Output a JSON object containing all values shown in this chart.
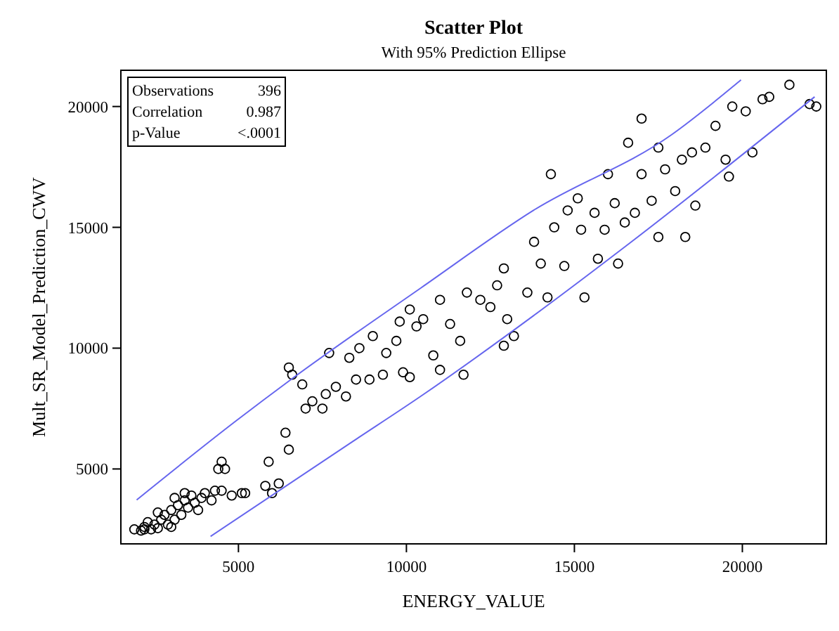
{
  "chart_data": {
    "type": "scatter",
    "title": "Scatter Plot",
    "subtitle": "With 95% Prediction Ellipse",
    "xlabel": "ENERGY_VALUE",
    "ylabel": "Mult_SR_Model_Prediction_CWV",
    "annotations": [
      "Observations 396",
      "Correlation 0.987",
      "p-Value <.0001"
    ],
    "xlim": [
      1500,
      22500
    ],
    "ylim": [
      1900,
      21500
    ],
    "xticks": [
      5000,
      10000,
      15000,
      20000
    ],
    "yticks": [
      5000,
      10000,
      15000,
      20000
    ],
    "grid": false,
    "marker": "circle",
    "series": [
      {
        "color": "#000000",
        "x": [
          1900,
          2100,
          2200,
          2400,
          2500,
          2600,
          2700,
          2800,
          2900,
          3000,
          3100,
          3200,
          3300,
          3400,
          3500,
          3600,
          3700,
          3800,
          3900,
          4000,
          4200,
          4300,
          4400,
          4500,
          4600,
          4500,
          4800,
          5100,
          5200,
          2300,
          2600,
          3100,
          3400,
          2200,
          3000,
          5900,
          5800,
          6000,
          6200,
          6500,
          6400,
          6600,
          6500,
          6900,
          7000,
          7200,
          7600,
          7500,
          7900,
          8200,
          8500,
          8300,
          8900,
          9300,
          8600,
          9000,
          9400,
          9700,
          9900,
          10100,
          10300,
          10100,
          10500,
          10800,
          11000,
          11300,
          11000,
          11600,
          11800,
          11700,
          12200,
          12500,
          12700,
          13000,
          13200,
          12900,
          13600,
          14000,
          13800,
          14200,
          14400,
          14700,
          14800,
          15200,
          15300,
          15600,
          15700,
          15900,
          16200,
          16000,
          16300,
          16500,
          16800,
          17000,
          17000,
          17300,
          17500,
          17700,
          17500,
          18000,
          18200,
          18300,
          18500,
          18600,
          18900,
          19200,
          19500,
          19700,
          19600,
          20100,
          20300,
          20600,
          20800,
          21400,
          22000,
          22200,
          16600,
          15100,
          14300,
          12900,
          9800,
          7700
        ],
        "values": [
          2500,
          2450,
          2600,
          2500,
          2700,
          2550,
          2900,
          3100,
          2700,
          3300,
          2900,
          3500,
          3100,
          3700,
          3400,
          3900,
          3600,
          3300,
          3800,
          4000,
          3700,
          4100,
          5000,
          5300,
          5000,
          4100,
          3900,
          4000,
          4000,
          2800,
          3200,
          3800,
          4000,
          2500,
          2600,
          5300,
          4300,
          4000,
          4400,
          5800,
          6500,
          8900,
          9200,
          8500,
          7500,
          7800,
          8100,
          7500,
          8400,
          8000,
          8700,
          9600,
          8700,
          8900,
          10000,
          10500,
          9800,
          10300,
          9000,
          8800,
          10900,
          11600,
          11200,
          9700,
          12000,
          11000,
          9100,
          10300,
          12300,
          8900,
          12000,
          11700,
          12600,
          11200,
          10500,
          13300,
          12300,
          13500,
          14400,
          12100,
          15000,
          13400,
          15700,
          14900,
          12100,
          15600,
          13700,
          14900,
          16000,
          17200,
          13500,
          15200,
          15600,
          17200,
          19500,
          16100,
          14600,
          17400,
          18300,
          16500,
          17800,
          14600,
          18100,
          15900,
          18300,
          19200,
          17800,
          20000,
          17100,
          19800,
          18100,
          20300,
          20400,
          20900,
          20100,
          20000,
          18500,
          16200,
          17200,
          10100,
          11100,
          9800
        ]
      },
      {
        "type": "line",
        "marker": "none",
        "color": "#6666ee",
        "x": [
          1970,
          4920,
          6580,
          10440,
          13780,
          17900,
          19960
        ],
        "values": [
          3720,
          6980,
          8720,
          12500,
          15700,
          18840,
          21100
        ]
      },
      {
        "type": "line",
        "marker": "none",
        "color": "#6666ee",
        "x": [
          4170,
          8360,
          10440,
          13780,
          16660,
          22150
        ],
        "values": [
          2210,
          6100,
          8020,
          11340,
          14360,
          20400
        ]
      }
    ]
  }
}
